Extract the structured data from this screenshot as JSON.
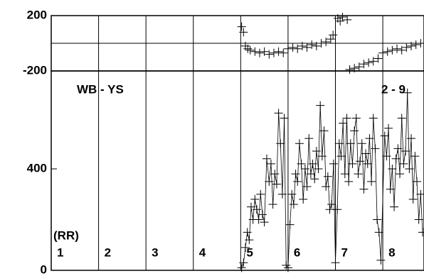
{
  "chart_data": [
    {
      "type": "scatter",
      "marker": "cross",
      "color": "#000000",
      "x": [
        4.02,
        4.06,
        4.1,
        4.15,
        4.2,
        4.3,
        4.4,
        4.5,
        4.6,
        4.7,
        4.8,
        4.9,
        5.0,
        5.1,
        5.2,
        5.3,
        5.4,
        5.5,
        5.6,
        5.7,
        5.8,
        5.9,
        5.95,
        6.05,
        6.1,
        6.15,
        6.25,
        6.3,
        6.4,
        6.5,
        6.6,
        6.7,
        6.8,
        6.9,
        7.0,
        7.1,
        7.2,
        7.3,
        7.4,
        7.5,
        7.6,
        7.7,
        7.8
      ],
      "values": [
        120,
        80,
        -20,
        -40,
        -50,
        -60,
        -70,
        -60,
        -80,
        -70,
        -60,
        -70,
        -40,
        -30,
        -40,
        -20,
        -30,
        -10,
        -20,
        0,
        10,
        30,
        60,
        180,
        160,
        190,
        170,
        -190,
        -180,
        -170,
        -150,
        -140,
        -130,
        -110,
        -70,
        -60,
        -50,
        -40,
        -50,
        -30,
        -20,
        -10,
        0
      ],
      "xlim": [
        0,
        7.87
      ],
      "xticks": [
        1,
        2,
        3,
        4,
        5,
        6,
        7
      ],
      "ylim": [
        -200,
        200
      ],
      "yticks": [
        -200,
        200
      ],
      "hline": 0,
      "grid": true
    },
    {
      "type": "line",
      "marker": "cross",
      "color": "#000000",
      "x": [
        4.02,
        4.06,
        4.1,
        4.14,
        4.18,
        4.22,
        4.26,
        4.3,
        4.34,
        4.38,
        4.42,
        4.46,
        4.5,
        4.55,
        4.6,
        4.64,
        4.68,
        4.72,
        4.76,
        4.8,
        4.84,
        4.88,
        4.92,
        4.96,
        5.0,
        5.04,
        5.08,
        5.12,
        5.16,
        5.2,
        5.24,
        5.28,
        5.32,
        5.36,
        5.4,
        5.44,
        5.48,
        5.52,
        5.56,
        5.6,
        5.64,
        5.68,
        5.72,
        5.76,
        5.8,
        5.84,
        5.88,
        5.92,
        5.96,
        6.0,
        6.04,
        6.08,
        6.12,
        6.16,
        6.2,
        6.24,
        6.28,
        6.32,
        6.36,
        6.4,
        6.44,
        6.48,
        6.52,
        6.56,
        6.6,
        6.64,
        6.68,
        6.72,
        6.76,
        6.8,
        6.84,
        6.88,
        6.92,
        6.96,
        7.04,
        7.08,
        7.12,
        7.16,
        7.2,
        7.24,
        7.28,
        7.32,
        7.36,
        7.4,
        7.44,
        7.48,
        7.52,
        7.56,
        7.6,
        7.64,
        7.68,
        7.72,
        7.76,
        7.8,
        7.84
      ],
      "values": [
        10,
        30,
        90,
        150,
        120,
        250,
        200,
        280,
        240,
        200,
        300,
        220,
        190,
        440,
        350,
        420,
        260,
        380,
        340,
        620,
        500,
        300,
        600,
        20,
        10,
        180,
        300,
        260,
        380,
        350,
        500,
        420,
        280,
        400,
        330,
        520,
        380,
        420,
        360,
        470,
        400,
        650,
        450,
        550,
        330,
        370,
        240,
        260,
        420,
        30,
        240,
        500,
        450,
        580,
        380,
        600,
        350,
        500,
        420,
        550,
        600,
        380,
        430,
        500,
        320,
        460,
        420,
        520,
        350,
        600,
        480,
        200,
        150,
        40,
        530,
        450,
        560,
        320,
        400,
        250,
        440,
        480,
        380,
        600,
        420,
        470,
        700,
        400,
        520,
        280,
        450,
        350,
        200,
        300,
        150
      ],
      "xlim": [
        0,
        7.87
      ],
      "xticks": [
        1,
        2,
        3,
        4,
        5,
        6,
        7
      ],
      "ylim": [
        0,
        786
      ],
      "yticks": [
        0,
        400
      ],
      "grid": true,
      "lanes": [
        "1",
        "2",
        "3",
        "4",
        "5",
        "6",
        "7",
        "8"
      ],
      "annotations": [
        "WB - YS",
        "2 - 9"
      ],
      "unit_label": "(RR)"
    }
  ]
}
